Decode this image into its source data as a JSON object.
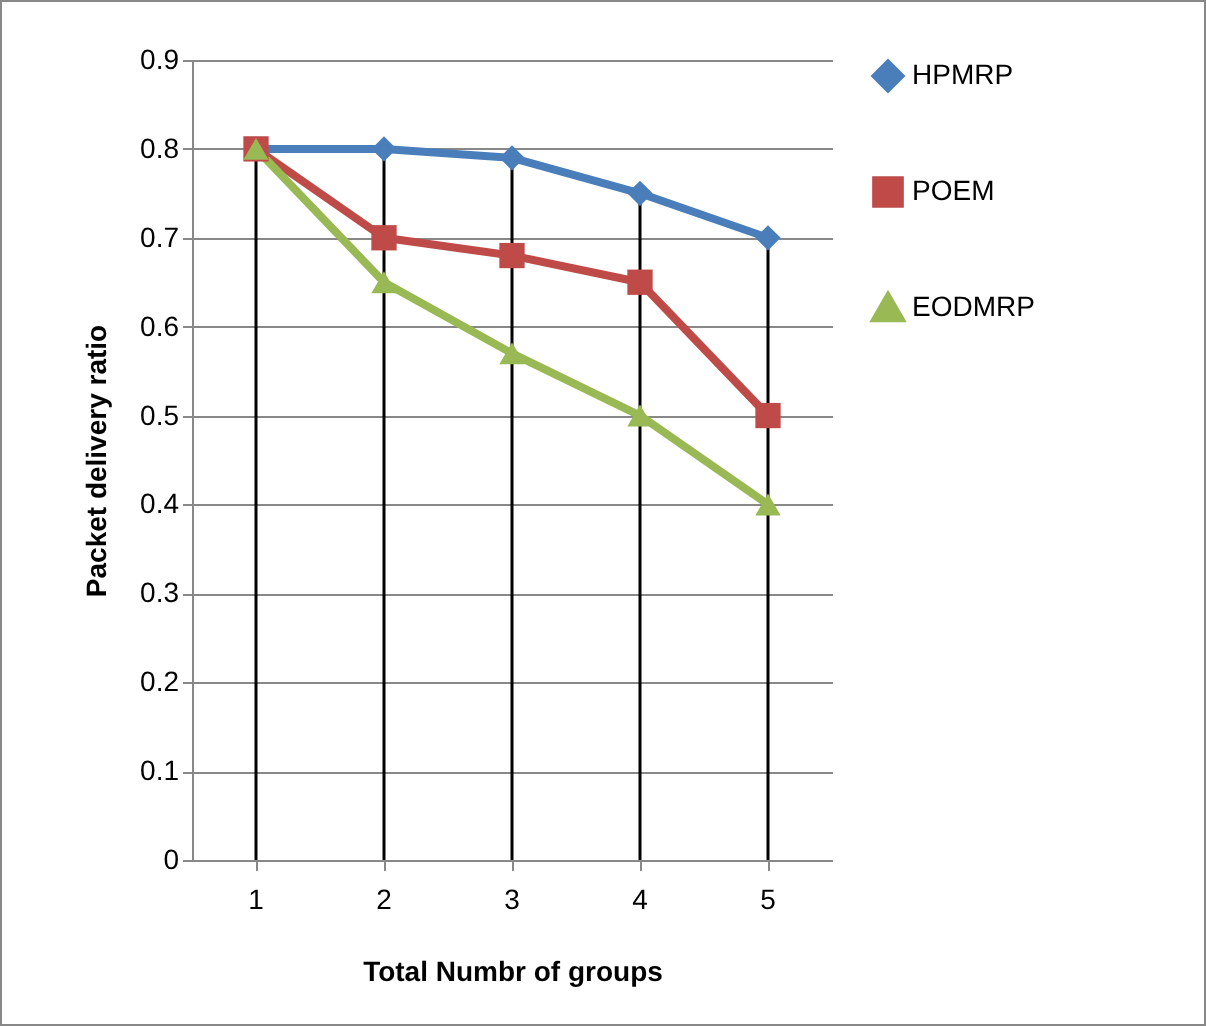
{
  "chart_data": {
    "type": "line",
    "xlabel": "Total Numbr of groups",
    "ylabel": "Packet delivery ratio",
    "categories": [
      "1",
      "2",
      "3",
      "4",
      "5"
    ],
    "series": [
      {
        "name": "HPMRP",
        "color": "#4a7ebb",
        "marker": "diamond",
        "values": [
          0.8,
          0.8,
          0.79,
          0.75,
          0.7
        ]
      },
      {
        "name": "POEM",
        "color": "#be4b48",
        "marker": "square",
        "values": [
          0.8,
          0.7,
          0.68,
          0.65,
          0.5
        ]
      },
      {
        "name": "EODMRP",
        "color": "#98b954",
        "marker": "triangle",
        "values": [
          0.8,
          0.65,
          0.57,
          0.5,
          0.4
        ]
      }
    ],
    "ylim": [
      0,
      0.9
    ],
    "yticks": [
      0,
      0.1,
      0.2,
      0.3,
      0.4,
      0.5,
      0.6,
      0.7,
      0.8,
      0.9
    ],
    "grid": true,
    "legend": "right",
    "line_style": "solid"
  }
}
